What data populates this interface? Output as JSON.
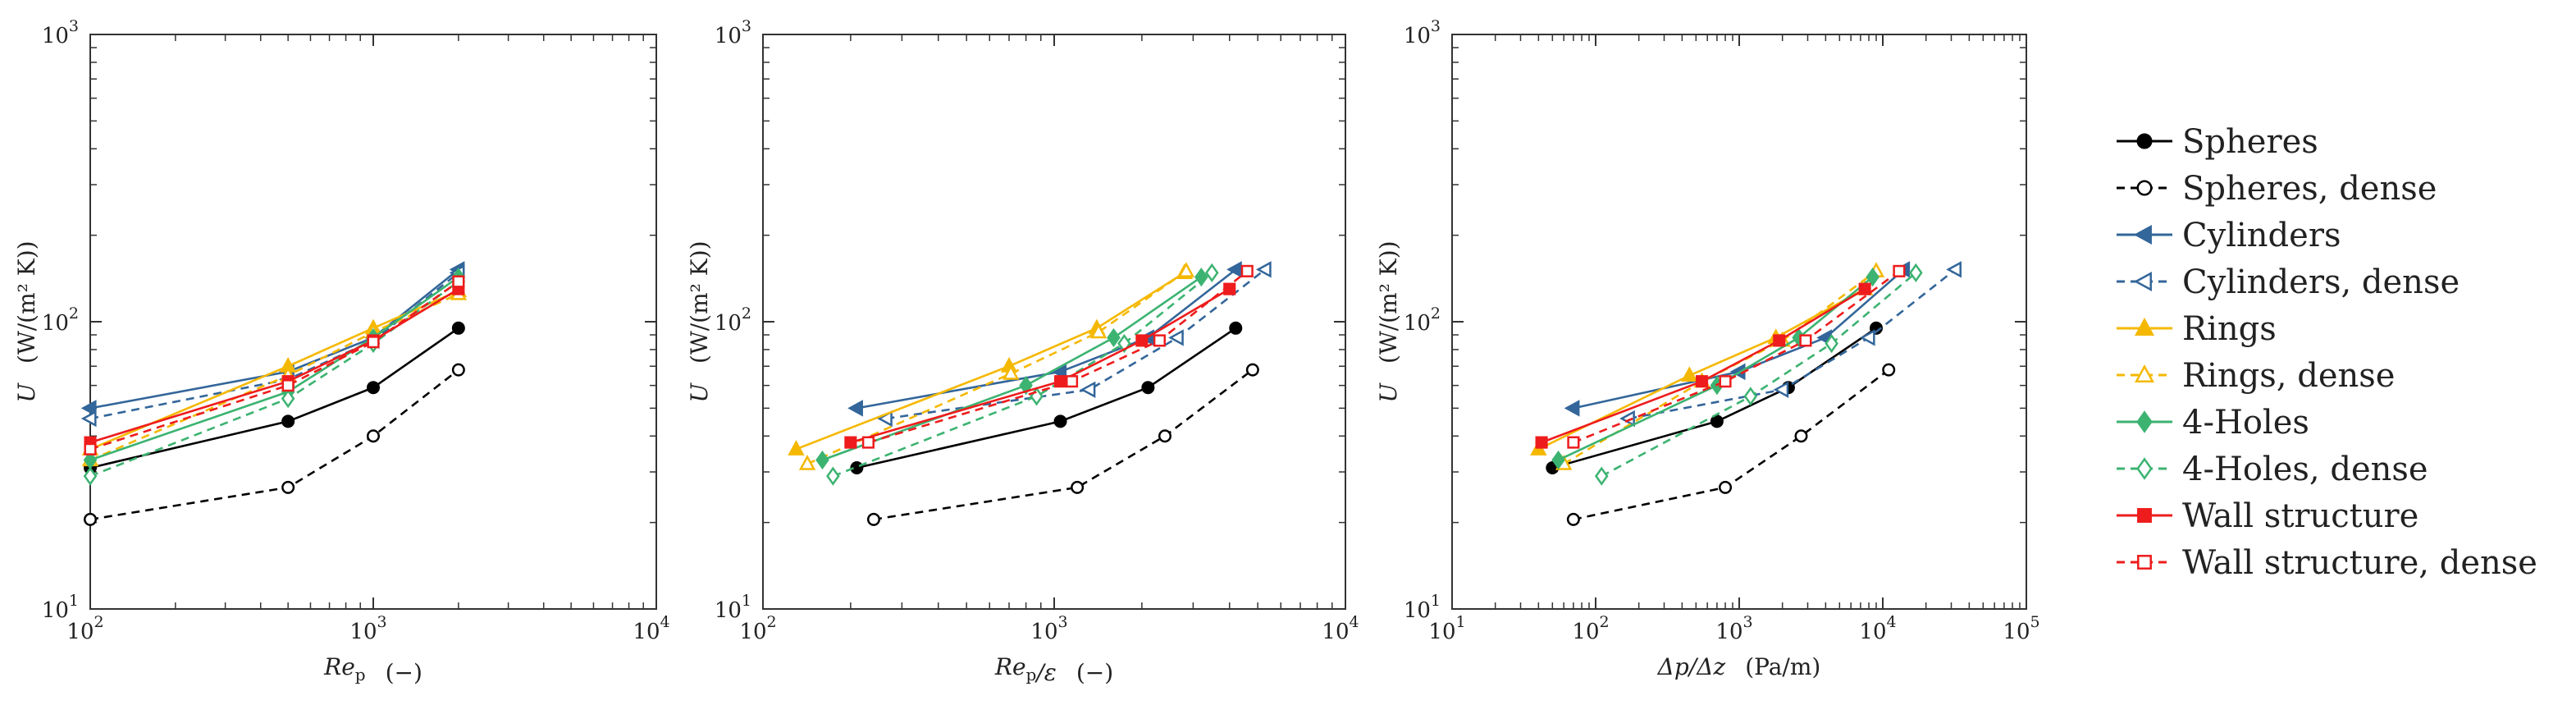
{
  "chart_data": [
    {
      "type": "line",
      "panel": "left",
      "xscale": "log",
      "yscale": "log",
      "xlim": [
        100,
        10000
      ],
      "ylim": [
        10,
        1000
      ],
      "xlabel": {
        "main": "Re",
        "sub": "p",
        "unit": "(−)"
      },
      "ylabel": {
        "main": "U",
        "unit": "(W/(m² K))"
      },
      "xticks": [
        {
          "base": "10",
          "exp": "2"
        },
        {
          "base": "10",
          "exp": "3"
        },
        {
          "base": "10",
          "exp": "4"
        }
      ],
      "yticks": [
        {
          "base": "10",
          "exp": "1"
        },
        {
          "base": "10",
          "exp": "2"
        },
        {
          "base": "10",
          "exp": "3"
        }
      ],
      "series": [
        {
          "name": "Spheres",
          "x": [
            100,
            500,
            1000,
            2000
          ],
          "y": [
            31,
            45,
            59,
            95
          ]
        },
        {
          "name": "Spheres, dense",
          "x": [
            100,
            500,
            1000,
            2000
          ],
          "y": [
            20.5,
            26.5,
            40,
            68
          ]
        },
        {
          "name": "Cylinders",
          "x": [
            100,
            500,
            1000,
            2000
          ],
          "y": [
            50,
            67,
            88,
            152
          ]
        },
        {
          "name": "Cylinders, dense",
          "x": [
            100,
            500,
            1000,
            2000
          ],
          "y": [
            46,
            63,
            86,
            148
          ]
        },
        {
          "name": "Rings",
          "x": [
            100,
            500,
            1000,
            2000
          ],
          "y": [
            36,
            70,
            95,
            128
          ]
        },
        {
          "name": "Rings, dense",
          "x": [
            100,
            500,
            1000,
            2000
          ],
          "y": [
            33,
            65,
            92,
            125
          ]
        },
        {
          "name": "4-Holes",
          "x": [
            100,
            500,
            1000,
            2000
          ],
          "y": [
            33,
            57,
            88,
            143
          ]
        },
        {
          "name": "4-Holes, dense",
          "x": [
            100,
            500,
            1000,
            2000
          ],
          "y": [
            29,
            54,
            84,
            138
          ]
        },
        {
          "name": "Wall structure",
          "x": [
            100,
            500,
            1000,
            2000
          ],
          "y": [
            38,
            62,
            86,
            130
          ]
        },
        {
          "name": "Wall structure, dense",
          "x": [
            100,
            500,
            1000,
            2000
          ],
          "y": [
            36,
            60,
            85,
            138
          ]
        }
      ]
    },
    {
      "type": "line",
      "panel": "middle",
      "xscale": "log",
      "yscale": "log",
      "xlim": [
        100,
        10000
      ],
      "ylim": [
        10,
        1000
      ],
      "xlabel": {
        "main": "Re",
        "sub": "p",
        "tail": "/ε",
        "unit": "(−)"
      },
      "ylabel": {
        "main": "U",
        "unit": "(W/(m² K))"
      },
      "xticks": [
        {
          "base": "10",
          "exp": "2"
        },
        {
          "base": "10",
          "exp": "3"
        },
        {
          "base": "10",
          "exp": "4"
        }
      ],
      "yticks": [
        {
          "base": "10",
          "exp": "1"
        },
        {
          "base": "10",
          "exp": "2"
        },
        {
          "base": "10",
          "exp": "3"
        }
      ],
      "series": [
        {
          "name": "Spheres",
          "x": [
            210,
            1050,
            2100,
            4200
          ],
          "y": [
            31,
            45,
            59,
            95
          ]
        },
        {
          "name": "Spheres, dense",
          "x": [
            240,
            1200,
            2400,
            4800
          ],
          "y": [
            20.5,
            26.5,
            40,
            68
          ]
        },
        {
          "name": "Cylinders",
          "x": [
            210,
            1050,
            2100,
            4200
          ],
          "y": [
            50,
            67,
            88,
            152
          ]
        },
        {
          "name": "Cylinders, dense",
          "x": [
            265,
            1320,
            2650,
            5300
          ],
          "y": [
            46,
            58,
            88,
            152
          ]
        },
        {
          "name": "Rings",
          "x": [
            130,
            700,
            1400,
            2800
          ],
          "y": [
            36,
            70,
            95,
            148
          ]
        },
        {
          "name": "Rings, dense",
          "x": [
            142,
            710,
            1420,
            2840
          ],
          "y": [
            32,
            66,
            92,
            150
          ]
        },
        {
          "name": "4-Holes",
          "x": [
            160,
            800,
            1600,
            3200
          ],
          "y": [
            33,
            60,
            88,
            143
          ]
        },
        {
          "name": "4-Holes, dense",
          "x": [
            174,
            870,
            1740,
            3480
          ],
          "y": [
            29,
            55,
            84,
            148
          ]
        },
        {
          "name": "Wall structure",
          "x": [
            200,
            1050,
            2000,
            4000
          ],
          "y": [
            38,
            62,
            86,
            130
          ]
        },
        {
          "name": "Wall structure, dense",
          "x": [
            230,
            1150,
            2300,
            4600
          ],
          "y": [
            38,
            62,
            86,
            150
          ]
        }
      ]
    },
    {
      "type": "line",
      "panel": "right",
      "xscale": "log",
      "yscale": "log",
      "xlim": [
        10,
        100000
      ],
      "ylim": [
        10,
        1000
      ],
      "xlabel": {
        "main": "Δp/Δz",
        "unit": "(Pa/m)"
      },
      "ylabel": {
        "main": "U",
        "unit": "(W/(m² K))"
      },
      "xticks": [
        {
          "base": "10",
          "exp": "1"
        },
        {
          "base": "10",
          "exp": "2"
        },
        {
          "base": "10",
          "exp": "3"
        },
        {
          "base": "10",
          "exp": "4"
        },
        {
          "base": "10",
          "exp": "5"
        }
      ],
      "yticks": [
        {
          "base": "10",
          "exp": "1"
        },
        {
          "base": "10",
          "exp": "2"
        },
        {
          "base": "10",
          "exp": "3"
        }
      ],
      "series": [
        {
          "name": "Spheres",
          "x": [
            50,
            700,
            2200,
            9000
          ],
          "y": [
            31,
            45,
            59,
            95
          ]
        },
        {
          "name": "Spheres, dense",
          "x": [
            70,
            800,
            2700,
            11000
          ],
          "y": [
            20.5,
            26.5,
            40,
            68
          ]
        },
        {
          "name": "Cylinders",
          "x": [
            70,
            1000,
            4000,
            14000
          ],
          "y": [
            50,
            67,
            88,
            152
          ]
        },
        {
          "name": "Cylinders, dense",
          "x": [
            170,
            2000,
            8000,
            32000
          ],
          "y": [
            46,
            58,
            88,
            152
          ]
        },
        {
          "name": "Rings",
          "x": [
            40,
            450,
            1800,
            7500
          ],
          "y": [
            36,
            65,
            88,
            130
          ]
        },
        {
          "name": "Rings, dense",
          "x": [
            60,
            550,
            2000,
            9000
          ],
          "y": [
            32,
            62,
            86,
            150
          ]
        },
        {
          "name": "4-Holes",
          "x": [
            55,
            700,
            2600,
            8500
          ],
          "y": [
            33,
            60,
            88,
            143
          ]
        },
        {
          "name": "4-Holes, dense",
          "x": [
            110,
            1200,
            4400,
            17000
          ],
          "y": [
            29,
            55,
            84,
            148
          ]
        },
        {
          "name": "Wall structure",
          "x": [
            42,
            550,
            1900,
            7500
          ],
          "y": [
            38,
            62,
            86,
            130
          ]
        },
        {
          "name": "Wall structure, dense",
          "x": [
            70,
            800,
            2900,
            13000
          ],
          "y": [
            38,
            62,
            86,
            150
          ]
        }
      ]
    }
  ],
  "legend": {
    "placement": "right",
    "entries": [
      {
        "name": "Spheres",
        "color": "#000000",
        "marker": "circle",
        "filled": true,
        "dashed": false
      },
      {
        "name": "Spheres, dense",
        "color": "#000000",
        "marker": "circle",
        "filled": false,
        "dashed": true
      },
      {
        "name": "Cylinders",
        "color": "#33669a",
        "marker": "triangle-left",
        "filled": true,
        "dashed": false
      },
      {
        "name": "Cylinders, dense",
        "color": "#33669a",
        "marker": "triangle-left",
        "filled": false,
        "dashed": true
      },
      {
        "name": "Rings",
        "color": "#f5b800",
        "marker": "triangle-up",
        "filled": true,
        "dashed": false
      },
      {
        "name": "Rings, dense",
        "color": "#f5b800",
        "marker": "triangle-up",
        "filled": false,
        "dashed": true
      },
      {
        "name": "4-Holes",
        "color": "#3cb371",
        "marker": "diamond",
        "filled": true,
        "dashed": false
      },
      {
        "name": "4-Holes, dense",
        "color": "#3cb371",
        "marker": "diamond",
        "filled": false,
        "dashed": true
      },
      {
        "name": "Wall structure",
        "color": "#ee1c1c",
        "marker": "square",
        "filled": true,
        "dashed": false
      },
      {
        "name": "Wall structure, dense",
        "color": "#ee1c1c",
        "marker": "square",
        "filled": false,
        "dashed": true
      }
    ]
  }
}
